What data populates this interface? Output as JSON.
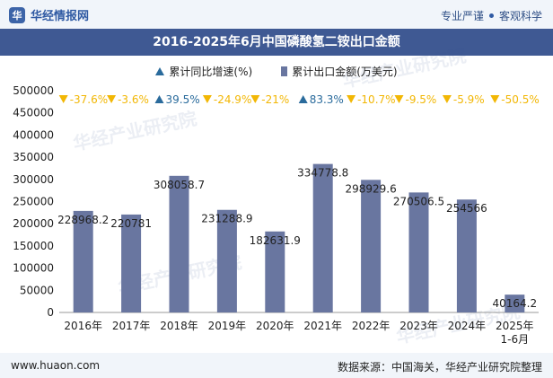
{
  "header": {
    "brand": "华经情报网",
    "slogan_left": "专业严谨",
    "slogan_right": "客观科学",
    "logo_icon": "hua-logo-icon"
  },
  "chart_data": {
    "type": "bar",
    "title": "2016-2025年6月中国磷酸氢二铵出口金额",
    "categories": [
      "2016年",
      "2017年",
      "2018年",
      "2019年",
      "2020年",
      "2021年",
      "2022年",
      "2023年",
      "2024年",
      "2025年\n1-6月"
    ],
    "series": [
      {
        "name": "累计出口金额(万美元)",
        "values": [
          228968.2,
          220781,
          308058.7,
          231288.9,
          182631.9,
          334778.8,
          298929.6,
          270506.5,
          254566,
          40164.2
        ],
        "labels": [
          "228968.2",
          "220781",
          "308058.7",
          "231288.9",
          "182631.9",
          "334778.8",
          "298929.6",
          "270506.5",
          "254566",
          "40164.2"
        ],
        "color": "#6976a0"
      },
      {
        "name": "累计同比增速(%)",
        "values": [
          -37.6,
          -3.6,
          39.5,
          -24.9,
          -21,
          83.3,
          -10.7,
          -9.5,
          -5.9,
          -50.5
        ],
        "labels": [
          "-37.6%",
          "-3.6%",
          "39.5%",
          "-24.9%",
          "-21%",
          "83.3%",
          "-10.7%",
          "-9.5%",
          "-5.9%",
          "-50.5%"
        ],
        "up_color": "#2a6b9c",
        "down_color": "#f2b705"
      }
    ],
    "yticks": [
      "0",
      "50000",
      "100000",
      "150000",
      "200000",
      "250000",
      "300000",
      "350000",
      "400000",
      "450000",
      "500000"
    ],
    "ylim": [
      0,
      500000
    ],
    "grid": false,
    "legend": "top-center"
  },
  "watermark": "华经产业研究院",
  "footer": {
    "url": "www.huaon.com",
    "source": "数据来源：中国海关，华经产业研究院整理"
  }
}
